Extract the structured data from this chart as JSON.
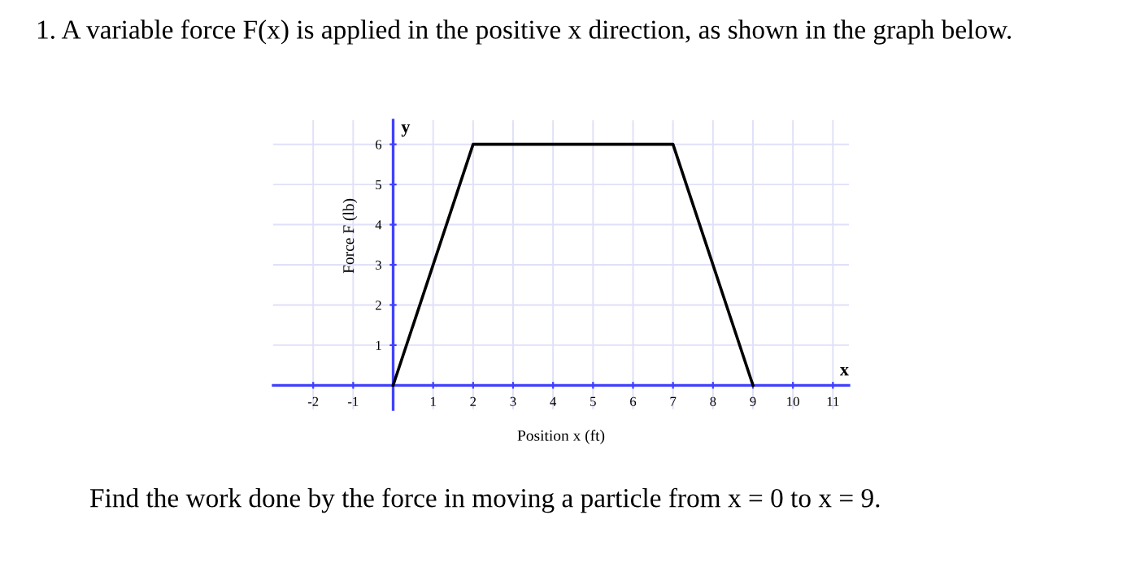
{
  "chart_data": {
    "type": "line",
    "title": "1. A variable force F(x) is applied in the positive x direction, as shown in the graph below.",
    "xlabel": "Position x (ft)",
    "ylabel": "Force F (lb)",
    "x": [
      0,
      2,
      7,
      9
    ],
    "series": [
      {
        "color": "#000000",
        "values": [
          0,
          6,
          6,
          0
        ]
      }
    ],
    "xlim": [
      -3,
      11.4
    ],
    "ylim": [
      -0.6,
      6.6
    ],
    "xticks": [
      -2,
      -1,
      1,
      2,
      3,
      4,
      5,
      6,
      7,
      8,
      9,
      10,
      11
    ],
    "yticks": [
      1,
      2,
      3,
      4,
      5,
      6
    ],
    "grid": true,
    "annotations": [
      "x",
      "y",
      "Find the work done by the force in moving a particle from x = 0 to x = 9."
    ]
  }
}
